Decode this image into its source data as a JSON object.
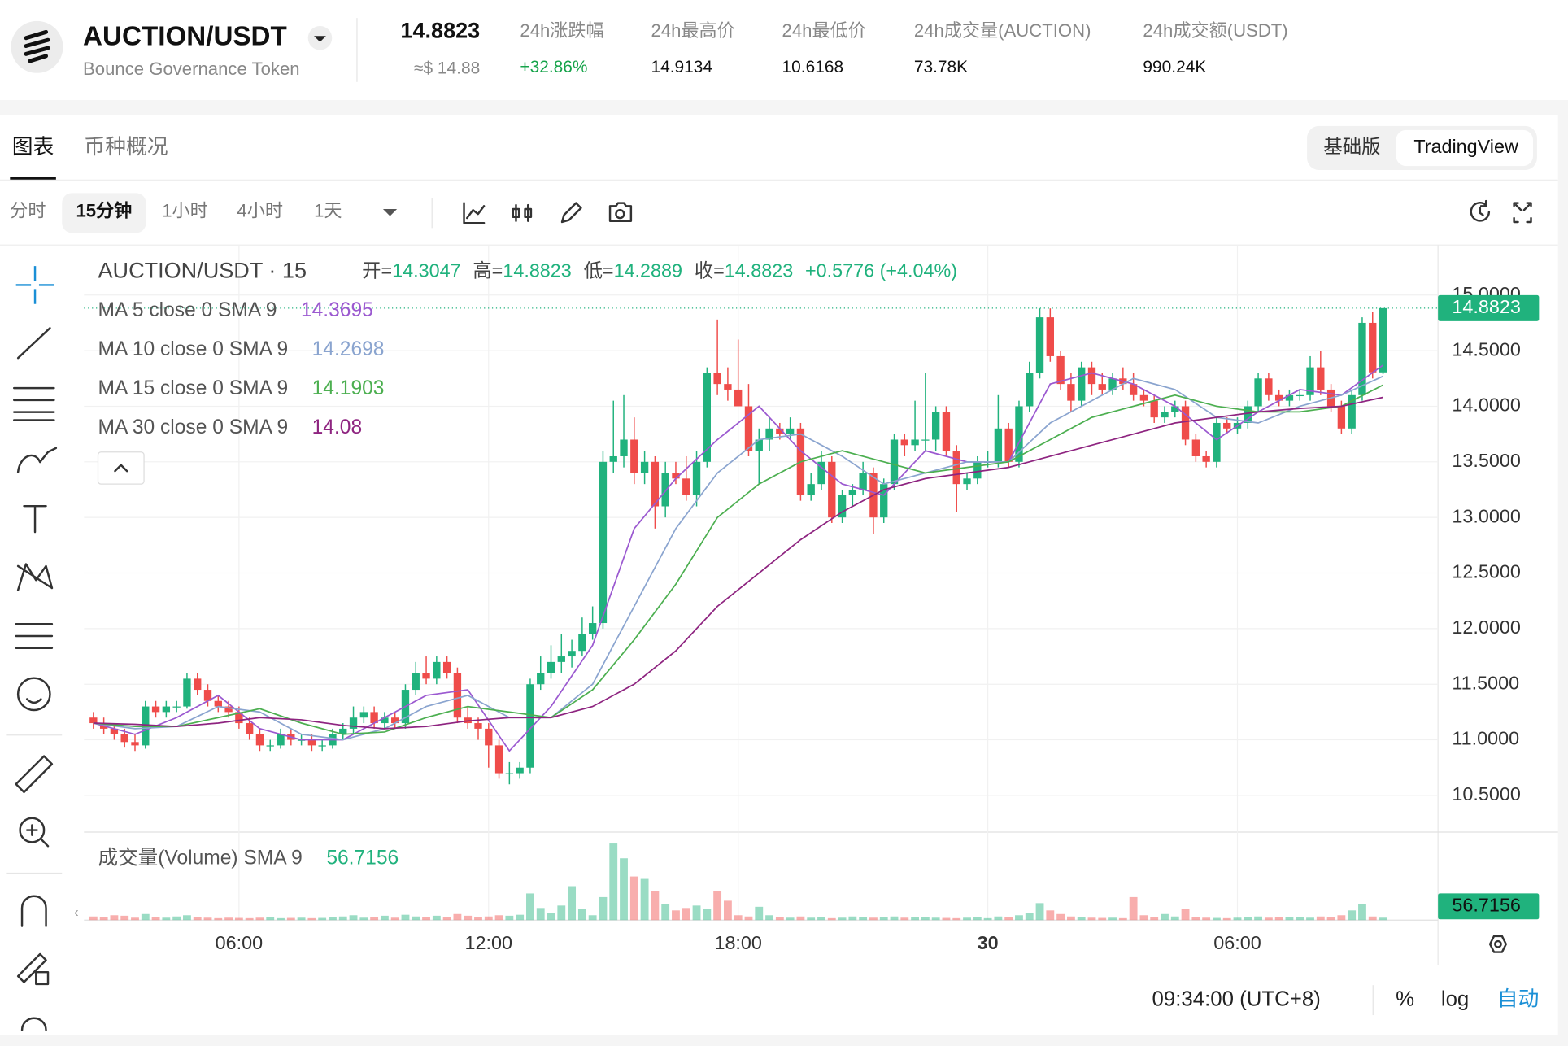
{
  "header": {
    "pair": "AUCTION/USDT",
    "name": "Bounce Governance Token",
    "price": "14.8823",
    "price_usd": "≈$ 14.88",
    "stats": [
      {
        "label": "24h涨跌幅",
        "value": "+32.86%"
      },
      {
        "label": "24h最高价",
        "value": "14.9134"
      },
      {
        "label": "24h最低价",
        "value": "10.6168"
      },
      {
        "label": "24h成交量(AUCTION)",
        "value": "73.78K"
      },
      {
        "label": "24h成交额(USDT)",
        "value": "990.24K"
      }
    ]
  },
  "tabs": [
    "图表",
    "币种概况"
  ],
  "view_modes": [
    "基础版",
    "TradingView"
  ],
  "intervals": [
    "分时",
    "15分钟",
    "1小时",
    "4小时",
    "1天"
  ],
  "footer": {
    "time": "09:34:00 (UTC+8)",
    "percent": "%",
    "log": "log",
    "auto": "自动"
  },
  "chart_data": {
    "type": "candlestick",
    "title": "AUCTION/USDT · 15",
    "ohlc_labels": [
      "开=",
      "高=",
      "低=",
      "收="
    ],
    "change_label": "+0.5776 (+4.04%)",
    "up_color": "#20b27d",
    "down_color": "#ef4c4a",
    "categories": [
      null,
      null,
      null,
      null,
      null,
      null,
      null,
      null,
      null,
      null,
      null,
      null,
      null,
      null,
      "06:00",
      null,
      null,
      null,
      null,
      null,
      null,
      null,
      null,
      null,
      null,
      null,
      null,
      null,
      null,
      null,
      null,
      null,
      null,
      null,
      null,
      null,
      null,
      null,
      "12:00",
      null,
      null,
      null,
      null,
      null,
      null,
      null,
      null,
      null,
      null,
      null,
      null,
      null,
      null,
      null,
      null,
      null,
      null,
      null,
      null,
      null,
      null,
      null,
      "18:00",
      null,
      null,
      null,
      null,
      null,
      null,
      null,
      null,
      null,
      null,
      null,
      null,
      null,
      null,
      null,
      null,
      null,
      null,
      null,
      null,
      null,
      null,
      null,
      "30",
      null,
      null,
      null,
      null,
      null,
      null,
      null,
      null,
      null,
      null,
      null,
      null,
      null,
      null,
      null,
      null,
      null,
      null,
      null,
      null,
      null,
      null,
      null,
      "06:00",
      null,
      null,
      null,
      null,
      null,
      null,
      null,
      null,
      null,
      null,
      null,
      null,
      null,
      null
    ],
    "candles": [
      [
        11.2,
        11.25,
        11.1,
        11.15
      ],
      [
        11.15,
        11.2,
        11.05,
        11.1
      ],
      [
        11.1,
        11.15,
        11.0,
        11.05
      ],
      [
        11.05,
        11.1,
        10.93,
        10.98
      ],
      [
        10.98,
        11.05,
        10.9,
        10.95
      ],
      [
        10.95,
        11.35,
        10.92,
        11.3
      ],
      [
        11.3,
        11.35,
        11.2,
        11.25
      ],
      [
        11.25,
        11.35,
        11.2,
        11.3
      ],
      [
        11.3,
        11.35,
        11.25,
        11.3
      ],
      [
        11.3,
        11.6,
        11.28,
        11.55
      ],
      [
        11.55,
        11.6,
        11.4,
        11.45
      ],
      [
        11.45,
        11.5,
        11.3,
        11.35
      ],
      [
        11.35,
        11.4,
        11.25,
        11.3
      ],
      [
        11.3,
        11.35,
        11.2,
        11.25
      ],
      [
        11.25,
        11.3,
        11.1,
        11.15
      ],
      [
        11.15,
        11.2,
        11.0,
        11.05
      ],
      [
        11.05,
        11.1,
        10.9,
        10.95
      ],
      [
        10.95,
        11.0,
        10.9,
        10.95
      ],
      [
        10.95,
        11.1,
        10.92,
        11.05
      ],
      [
        11.05,
        11.1,
        10.95,
        11.0
      ],
      [
        11.0,
        11.05,
        10.95,
        11.0
      ],
      [
        11.0,
        11.05,
        10.9,
        10.95
      ],
      [
        10.95,
        11.0,
        10.9,
        10.95
      ],
      [
        10.95,
        11.1,
        10.92,
        11.05
      ],
      [
        11.05,
        11.15,
        11.0,
        11.1
      ],
      [
        11.1,
        11.3,
        11.05,
        11.2
      ],
      [
        11.2,
        11.3,
        11.15,
        11.25
      ],
      [
        11.25,
        11.3,
        11.1,
        11.15
      ],
      [
        11.15,
        11.25,
        11.1,
        11.2
      ],
      [
        11.2,
        11.25,
        11.1,
        11.15
      ],
      [
        11.15,
        11.5,
        11.1,
        11.45
      ],
      [
        11.45,
        11.7,
        11.4,
        11.6
      ],
      [
        11.6,
        11.75,
        11.5,
        11.55
      ],
      [
        11.55,
        11.75,
        11.5,
        11.7
      ],
      [
        11.7,
        11.75,
        11.55,
        11.6
      ],
      [
        11.6,
        11.65,
        11.15,
        11.2
      ],
      [
        11.2,
        11.3,
        11.1,
        11.15
      ],
      [
        11.15,
        11.2,
        11.0,
        11.1
      ],
      [
        11.1,
        11.15,
        10.75,
        10.95
      ],
      [
        10.95,
        11.0,
        10.65,
        10.7
      ],
      [
        10.7,
        10.8,
        10.6,
        10.7
      ],
      [
        10.7,
        10.8,
        10.65,
        10.75
      ],
      [
        10.75,
        11.55,
        10.7,
        11.5
      ],
      [
        11.5,
        11.75,
        11.45,
        11.6
      ],
      [
        11.6,
        11.85,
        11.55,
        11.7
      ],
      [
        11.7,
        11.95,
        11.6,
        11.75
      ],
      [
        11.75,
        11.9,
        11.65,
        11.8
      ],
      [
        11.8,
        12.1,
        11.75,
        11.95
      ],
      [
        11.95,
        12.2,
        11.9,
        12.05
      ],
      [
        12.05,
        13.6,
        12.0,
        13.5
      ],
      [
        13.5,
        14.05,
        13.4,
        13.55
      ],
      [
        13.55,
        14.1,
        13.45,
        13.7
      ],
      [
        13.7,
        13.9,
        13.3,
        13.4
      ],
      [
        13.4,
        13.6,
        13.3,
        13.5
      ],
      [
        13.5,
        13.55,
        12.9,
        13.1
      ],
      [
        13.1,
        13.5,
        13.0,
        13.4
      ],
      [
        13.4,
        13.5,
        13.3,
        13.35
      ],
      [
        13.35,
        13.55,
        13.15,
        13.2
      ],
      [
        13.2,
        13.6,
        13.1,
        13.5
      ],
      [
        13.5,
        14.35,
        13.45,
        14.3
      ],
      [
        14.3,
        14.78,
        14.1,
        14.2
      ],
      [
        14.2,
        14.35,
        14.05,
        14.15
      ],
      [
        14.15,
        14.6,
        14.0,
        14.0
      ],
      [
        14.0,
        14.2,
        13.55,
        13.6
      ],
      [
        13.6,
        13.8,
        13.3,
        13.7
      ],
      [
        13.7,
        13.9,
        13.6,
        13.8
      ],
      [
        13.8,
        13.85,
        13.7,
        13.75
      ],
      [
        13.75,
        13.9,
        13.7,
        13.8
      ],
      [
        13.8,
        13.85,
        13.15,
        13.2
      ],
      [
        13.2,
        13.4,
        13.15,
        13.3
      ],
      [
        13.3,
        13.6,
        13.25,
        13.5
      ],
      [
        13.5,
        13.55,
        12.95,
        13.0
      ],
      [
        13.0,
        13.25,
        12.95,
        13.2
      ],
      [
        13.2,
        13.3,
        13.1,
        13.25
      ],
      [
        13.25,
        13.5,
        13.2,
        13.4
      ],
      [
        13.4,
        13.45,
        12.85,
        13.0
      ],
      [
        13.0,
        13.35,
        12.95,
        13.3
      ],
      [
        13.3,
        13.75,
        13.25,
        13.7
      ],
      [
        13.7,
        13.75,
        13.55,
        13.65
      ],
      [
        13.65,
        14.05,
        13.6,
        13.7
      ],
      [
        13.7,
        14.3,
        13.6,
        13.7
      ],
      [
        13.7,
        14.0,
        13.6,
        13.95
      ],
      [
        13.95,
        14.0,
        13.55,
        13.6
      ],
      [
        13.6,
        13.65,
        13.05,
        13.3
      ],
      [
        13.3,
        13.4,
        13.25,
        13.35
      ],
      [
        13.35,
        13.55,
        13.3,
        13.5
      ],
      [
        13.5,
        13.6,
        13.45,
        13.5
      ],
      [
        13.5,
        14.1,
        13.45,
        13.8
      ],
      [
        13.8,
        13.85,
        13.45,
        13.5
      ],
      [
        13.5,
        14.05,
        13.45,
        14.0
      ],
      [
        14.0,
        14.4,
        13.95,
        14.3
      ],
      [
        14.3,
        14.88,
        14.25,
        14.8
      ],
      [
        14.8,
        14.88,
        14.4,
        14.45
      ],
      [
        14.45,
        14.5,
        14.15,
        14.2
      ],
      [
        14.2,
        14.3,
        13.95,
        14.05
      ],
      [
        14.05,
        14.4,
        14.0,
        14.35
      ],
      [
        14.35,
        14.4,
        14.1,
        14.2
      ],
      [
        14.2,
        14.3,
        14.1,
        14.15
      ],
      [
        14.15,
        14.3,
        14.1,
        14.25
      ],
      [
        14.25,
        14.35,
        14.15,
        14.2
      ],
      [
        14.2,
        14.3,
        14.05,
        14.1
      ],
      [
        14.1,
        14.15,
        14.0,
        14.05
      ],
      [
        14.05,
        14.1,
        13.85,
        13.9
      ],
      [
        13.9,
        14.0,
        13.85,
        13.95
      ],
      [
        13.95,
        14.05,
        13.9,
        14.0
      ],
      [
        14.0,
        14.05,
        13.65,
        13.7
      ],
      [
        13.7,
        13.75,
        13.5,
        13.55
      ],
      [
        13.55,
        13.6,
        13.45,
        13.5
      ],
      [
        13.5,
        13.9,
        13.45,
        13.85
      ],
      [
        13.85,
        13.9,
        13.75,
        13.8
      ],
      [
        13.8,
        13.9,
        13.75,
        13.85
      ],
      [
        13.85,
        14.05,
        13.8,
        14.0
      ],
      [
        14.0,
        14.3,
        13.95,
        14.25
      ],
      [
        14.25,
        14.3,
        14.05,
        14.1
      ],
      [
        14.1,
        14.15,
        14.0,
        14.05
      ],
      [
        14.05,
        14.15,
        14.0,
        14.1
      ],
      [
        14.1,
        14.15,
        14.05,
        14.1
      ],
      [
        14.1,
        14.45,
        14.05,
        14.35
      ],
      [
        14.35,
        14.5,
        14.1,
        14.15
      ],
      [
        14.15,
        14.2,
        13.95,
        14.0
      ],
      [
        14.0,
        14.05,
        13.75,
        13.8
      ],
      [
        13.8,
        14.15,
        13.75,
        14.1
      ],
      [
        14.1,
        14.8,
        14.05,
        14.75
      ],
      [
        14.75,
        14.85,
        14.25,
        14.3047
      ],
      [
        14.3047,
        14.8823,
        14.2889,
        14.8823
      ]
    ],
    "volume_title": "成交量(Volume) SMA 9",
    "volume_sma": 56.7156,
    "vlim": [
      0,
      330
    ],
    "volume": [
      15,
      12,
      20,
      18,
      10,
      25,
      12,
      10,
      15,
      20,
      12,
      10,
      8,
      10,
      9,
      8,
      10,
      12,
      8,
      9,
      10,
      8,
      9,
      12,
      15,
      20,
      10,
      12,
      18,
      10,
      22,
      15,
      12,
      18,
      14,
      25,
      18,
      12,
      15,
      20,
      18,
      22,
      110,
      50,
      30,
      60,
      140,
      45,
      20,
      95,
      316,
      255,
      180,
      170,
      120,
      65,
      40,
      50,
      60,
      45,
      120,
      80,
      20,
      15,
      55,
      20,
      12,
      10,
      15,
      10,
      12,
      8,
      10,
      15,
      12,
      10,
      12,
      15,
      10,
      14,
      12,
      10,
      9,
      8,
      10,
      12,
      8,
      15,
      12,
      20,
      30,
      70,
      40,
      25,
      15,
      12,
      10,
      9,
      10,
      8,
      95,
      20,
      12,
      25,
      15,
      45,
      12,
      10,
      9,
      8,
      10,
      12,
      15,
      10,
      12,
      14,
      12,
      10,
      15,
      12,
      20,
      40,
      65,
      15,
      10
    ],
    "ma_index": [
      0,
      4,
      8,
      12,
      16,
      20,
      24,
      28,
      32,
      36,
      40,
      44,
      48,
      52,
      56,
      60,
      64,
      68,
      72,
      76,
      80,
      84,
      88,
      92,
      96,
      100,
      104,
      108,
      112,
      116,
      120,
      124
    ],
    "ma_series": [
      {
        "name": "MA 5 close 0 SMA 9",
        "color": "#9b59d0",
        "values": [
          11.15,
          11.05,
          11.2,
          11.4,
          11.1,
          11.0,
          11.0,
          11.2,
          11.4,
          11.45,
          10.9,
          11.3,
          11.85,
          12.9,
          13.35,
          13.7,
          14.0,
          13.6,
          13.3,
          13.2,
          13.6,
          13.5,
          13.5,
          14.2,
          14.3,
          14.2,
          14.0,
          13.7,
          13.95,
          14.15,
          14.1,
          14.3695
        ]
      },
      {
        "name": "MA 10 close 0 SMA 9",
        "color": "#8aa4cf",
        "values": [
          11.15,
          11.1,
          11.12,
          11.3,
          11.25,
          11.05,
          11.0,
          11.1,
          11.3,
          11.4,
          11.2,
          11.2,
          11.5,
          12.2,
          12.9,
          13.4,
          13.7,
          13.75,
          13.55,
          13.3,
          13.4,
          13.5,
          13.5,
          13.85,
          14.05,
          14.25,
          14.15,
          13.9,
          13.85,
          14.0,
          14.1,
          14.2698
        ]
      },
      {
        "name": "MA 15 close 0 SMA 9",
        "color": "#4caf50",
        "values": [
          11.15,
          11.12,
          11.12,
          11.2,
          11.28,
          11.15,
          11.05,
          11.07,
          11.2,
          11.3,
          11.25,
          11.2,
          11.45,
          11.9,
          12.4,
          13.0,
          13.3,
          13.5,
          13.6,
          13.5,
          13.4,
          13.45,
          13.5,
          13.7,
          13.9,
          14.0,
          14.1,
          14.0,
          13.95,
          13.95,
          14.0,
          14.1903
        ]
      },
      {
        "name": "MA 30 close 0 SMA 9",
        "color": "#8e2480",
        "values": [
          11.15,
          11.14,
          11.12,
          11.15,
          11.2,
          11.18,
          11.13,
          11.1,
          11.12,
          11.17,
          11.2,
          11.2,
          11.3,
          11.5,
          11.8,
          12.2,
          12.5,
          12.8,
          13.05,
          13.25,
          13.35,
          13.4,
          13.45,
          13.55,
          13.65,
          13.75,
          13.85,
          13.9,
          13.95,
          13.98,
          14.0,
          14.08
        ]
      }
    ],
    "ylim": [
      10.17,
      15.45
    ],
    "yticks": [
      {
        "value": 10.5,
        "label": "10.5000"
      },
      {
        "value": 11,
        "label": "11.0000"
      },
      {
        "value": 11.5,
        "label": "11.5000"
      },
      {
        "value": 12,
        "label": "12.0000"
      },
      {
        "value": 12.5,
        "label": "12.5000"
      },
      {
        "value": 13,
        "label": "13.0000"
      },
      {
        "value": 13.5,
        "label": "13.5000"
      },
      {
        "value": 14,
        "label": "14.0000"
      },
      {
        "value": 14.5,
        "label": "14.5000"
      },
      {
        "value": 15,
        "label": "15.0000"
      }
    ],
    "grid": true
  }
}
